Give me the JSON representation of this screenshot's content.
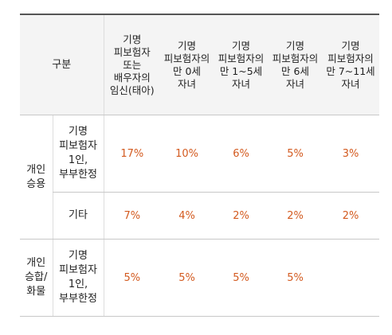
{
  "table": {
    "corner_label": "구분",
    "columns": [
      "기명\n피보험자\n또는\n배우자의\n임신(태아)",
      "기명\n피보험자의\n만 0세\n자녀",
      "기명\n피보험자의\n만 1~5세\n자녀",
      "기명\n피보험자의\n만 6세\n자녀",
      "기명\n피보험자의\n만 7~11세\n자녀"
    ],
    "groups": [
      {
        "name": "개인\n승용",
        "rows": [
          {
            "label": "기명\n피보험자\n1인,\n부부한정",
            "values": [
              "17%",
              "10%",
              "6%",
              "5%",
              "3%"
            ]
          },
          {
            "label": "기타",
            "values": [
              "7%",
              "4%",
              "2%",
              "2%",
              "2%"
            ]
          }
        ]
      },
      {
        "name": "개인\n승합/\n화물",
        "rows": [
          {
            "label": "기명\n피보험자\n1인,\n부부한정",
            "values": [
              "5%",
              "5%",
              "5%",
              "5%",
              ""
            ]
          }
        ]
      }
    ]
  }
}
